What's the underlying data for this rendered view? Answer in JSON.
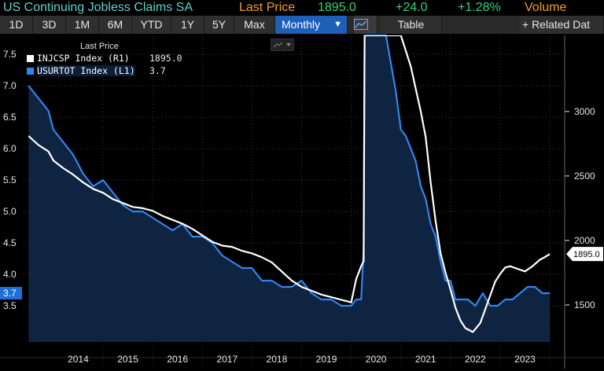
{
  "header": {
    "title": "US Continuing Jobless Claims SA",
    "last_price_label": "Last Price",
    "last_price": "1895.0",
    "change": "+24.0",
    "change_pct": "+1.28%",
    "volume_label": "Volume"
  },
  "toolbar": {
    "ranges": [
      "1D",
      "3D",
      "1M",
      "6M",
      "YTD",
      "1Y",
      "5Y",
      "Max"
    ],
    "frequency": "Monthly",
    "table_label": "Table",
    "related_label": "+ Related Dat"
  },
  "legend": {
    "heading": "Last Price",
    "items": [
      {
        "label": "INJCSP Index  (R1)",
        "value": "1895.0",
        "color": "#ffffff"
      },
      {
        "label": "USURTOT Index  (L1)",
        "value": "3.7",
        "color": "#2f86f0"
      }
    ]
  },
  "colors": {
    "claims": "#ffffff",
    "unemployment": "#2f86f0",
    "area": "#0f2440",
    "background": "#000000",
    "accent": "#1e5fb8"
  },
  "chart_data": {
    "type": "line",
    "x_labels": [
      "2014",
      "2015",
      "2016",
      "2017",
      "2018",
      "2019",
      "2020",
      "2021",
      "2022",
      "2023"
    ],
    "left_axis": {
      "label": "",
      "ticks": [
        "3.5",
        "4.0",
        "4.5",
        "5.0",
        "5.5",
        "6.0",
        "6.5",
        "7.0",
        "7.5"
      ],
      "range": [
        3.0,
        7.8
      ]
    },
    "right_axis": {
      "label": "",
      "ticks": [
        "1500",
        "2000",
        "2500",
        "3000"
      ],
      "range": [
        1250,
        3590
      ]
    },
    "current_labels": {
      "left": "3.7",
      "right": "1895.0"
    },
    "series": [
      {
        "name": "INJCSP Index (R1)",
        "axis": "right",
        "values": [
          [
            2013.5,
            2810
          ],
          [
            2013.7,
            2740
          ],
          [
            2013.9,
            2690
          ],
          [
            2014.0,
            2620
          ],
          [
            2014.2,
            2560
          ],
          [
            2014.4,
            2510
          ],
          [
            2014.6,
            2450
          ],
          [
            2014.8,
            2400
          ],
          [
            2015.0,
            2370
          ],
          [
            2015.2,
            2320
          ],
          [
            2015.4,
            2290
          ],
          [
            2015.6,
            2260
          ],
          [
            2015.8,
            2250
          ],
          [
            2016.0,
            2230
          ],
          [
            2016.2,
            2190
          ],
          [
            2016.4,
            2160
          ],
          [
            2016.6,
            2130
          ],
          [
            2016.8,
            2090
          ],
          [
            2017.0,
            2040
          ],
          [
            2017.2,
            1990
          ],
          [
            2017.4,
            1960
          ],
          [
            2017.6,
            1950
          ],
          [
            2017.8,
            1920
          ],
          [
            2018.0,
            1900
          ],
          [
            2018.2,
            1870
          ],
          [
            2018.4,
            1830
          ],
          [
            2018.6,
            1760
          ],
          [
            2018.8,
            1690
          ],
          [
            2019.0,
            1640
          ],
          [
            2019.2,
            1610
          ],
          [
            2019.4,
            1580
          ],
          [
            2019.6,
            1560
          ],
          [
            2019.8,
            1540
          ],
          [
            2020.0,
            1520
          ],
          [
            2020.1,
            1700
          ],
          [
            2020.2,
            1800
          ],
          [
            2020.25,
            1840
          ],
          [
            2020.27,
            3590
          ],
          [
            2020.3,
            3590
          ],
          [
            2020.5,
            3590
          ],
          [
            2020.7,
            3590
          ],
          [
            2020.9,
            3590
          ],
          [
            2021.0,
            3590
          ],
          [
            2021.2,
            3350
          ],
          [
            2021.4,
            3000
          ],
          [
            2021.5,
            2800
          ],
          [
            2021.6,
            2450
          ],
          [
            2021.7,
            2150
          ],
          [
            2021.8,
            1900
          ],
          [
            2021.9,
            1750
          ],
          [
            2022.0,
            1620
          ],
          [
            2022.1,
            1480
          ],
          [
            2022.2,
            1380
          ],
          [
            2022.3,
            1320
          ],
          [
            2022.45,
            1290
          ],
          [
            2022.6,
            1360
          ],
          [
            2022.75,
            1520
          ],
          [
            2022.9,
            1680
          ],
          [
            2023.0,
            1740
          ],
          [
            2023.1,
            1790
          ],
          [
            2023.2,
            1800
          ],
          [
            2023.35,
            1780
          ],
          [
            2023.5,
            1760
          ],
          [
            2023.65,
            1800
          ],
          [
            2023.8,
            1850
          ],
          [
            2023.9,
            1871
          ],
          [
            2024.0,
            1895
          ]
        ]
      },
      {
        "name": "USURTOT Index (L1)",
        "axis": "left",
        "values": [
          [
            2013.5,
            7.0
          ],
          [
            2013.7,
            6.8
          ],
          [
            2013.9,
            6.6
          ],
          [
            2014.0,
            6.3
          ],
          [
            2014.2,
            6.1
          ],
          [
            2014.4,
            5.9
          ],
          [
            2014.6,
            5.6
          ],
          [
            2014.8,
            5.4
          ],
          [
            2015.0,
            5.5
          ],
          [
            2015.2,
            5.3
          ],
          [
            2015.4,
            5.1
          ],
          [
            2015.6,
            5.0
          ],
          [
            2015.8,
            5.0
          ],
          [
            2016.0,
            4.9
          ],
          [
            2016.2,
            4.8
          ],
          [
            2016.4,
            4.7
          ],
          [
            2016.6,
            4.8
          ],
          [
            2016.8,
            4.6
          ],
          [
            2017.0,
            4.6
          ],
          [
            2017.2,
            4.5
          ],
          [
            2017.4,
            4.3
          ],
          [
            2017.6,
            4.2
          ],
          [
            2017.8,
            4.1
          ],
          [
            2018.0,
            4.1
          ],
          [
            2018.2,
            3.9
          ],
          [
            2018.4,
            3.9
          ],
          [
            2018.6,
            3.8
          ],
          [
            2018.8,
            3.8
          ],
          [
            2019.0,
            3.9
          ],
          [
            2019.2,
            3.7
          ],
          [
            2019.4,
            3.6
          ],
          [
            2019.6,
            3.6
          ],
          [
            2019.8,
            3.5
          ],
          [
            2020.0,
            3.5
          ],
          [
            2020.1,
            3.6
          ],
          [
            2020.2,
            3.6
          ],
          [
            2020.25,
            4.4
          ],
          [
            2020.27,
            7.8
          ],
          [
            2020.3,
            7.8
          ],
          [
            2020.5,
            7.8
          ],
          [
            2020.7,
            7.8
          ],
          [
            2020.9,
            6.9
          ],
          [
            2021.0,
            6.3
          ],
          [
            2021.1,
            6.2
          ],
          [
            2021.2,
            6.0
          ],
          [
            2021.3,
            5.8
          ],
          [
            2021.4,
            5.4
          ],
          [
            2021.5,
            5.2
          ],
          [
            2021.6,
            4.8
          ],
          [
            2021.7,
            4.6
          ],
          [
            2021.8,
            4.2
          ],
          [
            2021.9,
            3.9
          ],
          [
            2022.0,
            3.9
          ],
          [
            2022.1,
            3.6
          ],
          [
            2022.2,
            3.6
          ],
          [
            2022.35,
            3.6
          ],
          [
            2022.5,
            3.5
          ],
          [
            2022.65,
            3.7
          ],
          [
            2022.8,
            3.5
          ],
          [
            2022.95,
            3.5
          ],
          [
            2023.1,
            3.6
          ],
          [
            2023.25,
            3.6
          ],
          [
            2023.4,
            3.7
          ],
          [
            2023.55,
            3.8
          ],
          [
            2023.7,
            3.8
          ],
          [
            2023.85,
            3.7
          ],
          [
            2024.0,
            3.7
          ]
        ]
      }
    ],
    "xlim": [
      2013.4,
      2024.3
    ],
    "grid": true,
    "legend_position": "top-left"
  }
}
